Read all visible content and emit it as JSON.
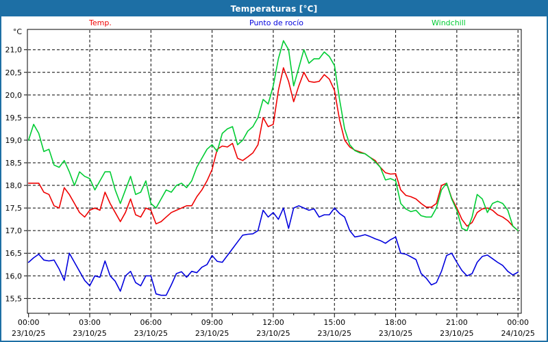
{
  "window": {
    "title": "Temperaturas [°C]"
  },
  "colors": {
    "titlebar_bg": "#1d6fa5",
    "titlebar_text": "#ffffff",
    "frame_border": "#1d6fa5",
    "plot_border": "#000000",
    "grid": "#000000",
    "temp_line": "#ee0000",
    "dew_line": "#0000dd",
    "windchill_line": "#00cc33"
  },
  "legend": [
    {
      "label": "Temp.",
      "color": "#ee0000"
    },
    {
      "label": "Punto de rocío",
      "color": "#0000dd"
    },
    {
      "label": "Windchill",
      "color": "#00cc33"
    }
  ],
  "chart_data": {
    "type": "line",
    "title": "Temperaturas [°C]",
    "y_unit": "°C",
    "ylim": [
      15.2,
      21.45
    ],
    "grid": "dashed-black, horizontal every 0.5 °C, vertical every 3 h",
    "legend_position": "top",
    "x_unit": "hours since 23/10/25 00:00",
    "x_hours": {
      "start": 0,
      "step": 0.25,
      "count": 97
    },
    "x_ticks": [
      {
        "t": 0,
        "time": "00:00",
        "date": "23/10/25"
      },
      {
        "t": 3,
        "time": "03:00",
        "date": "23/10/25"
      },
      {
        "t": 6,
        "time": "06:00",
        "date": "23/10/25"
      },
      {
        "t": 9,
        "time": "09:00",
        "date": "23/10/25"
      },
      {
        "t": 12,
        "time": "12:00",
        "date": "23/10/25"
      },
      {
        "t": 15,
        "time": "15:00",
        "date": "23/10/25"
      },
      {
        "t": 18,
        "time": "18:00",
        "date": "23/10/25"
      },
      {
        "t": 21,
        "time": "21:00",
        "date": "23/10/25"
      },
      {
        "t": 24,
        "time": "00:00",
        "date": "24/10/25"
      }
    ],
    "y_ticks": [
      {
        "v": 21.0,
        "label": "21,0"
      },
      {
        "v": 20.5,
        "label": "20,5"
      },
      {
        "v": 20.0,
        "label": "20,0"
      },
      {
        "v": 19.5,
        "label": "19,5"
      },
      {
        "v": 19.0,
        "label": "19,0"
      },
      {
        "v": 18.5,
        "label": "18,5"
      },
      {
        "v": 18.0,
        "label": "18,0"
      },
      {
        "v": 17.5,
        "label": "17,5"
      },
      {
        "v": 17.0,
        "label": "17,0"
      },
      {
        "v": 16.5,
        "label": "16,5"
      },
      {
        "v": 16.0,
        "label": "16,0"
      },
      {
        "v": 15.5,
        "label": "15,5"
      }
    ],
    "series": [
      {
        "name": "Temp.",
        "color": "#ee0000",
        "values": [
          18.05,
          18.05,
          18.05,
          17.85,
          17.8,
          17.55,
          17.5,
          17.95,
          17.8,
          17.6,
          17.4,
          17.3,
          17.45,
          17.5,
          17.45,
          17.85,
          17.6,
          17.4,
          17.2,
          17.4,
          17.7,
          17.35,
          17.3,
          17.5,
          17.45,
          17.15,
          17.2,
          17.3,
          17.4,
          17.45,
          17.5,
          17.55,
          17.55,
          17.75,
          17.9,
          18.1,
          18.35,
          18.8,
          18.87,
          18.85,
          18.93,
          18.6,
          18.55,
          18.63,
          18.72,
          18.9,
          19.5,
          19.3,
          19.35,
          20.1,
          20.6,
          20.3,
          19.85,
          20.2,
          20.5,
          20.3,
          20.28,
          20.3,
          20.45,
          20.35,
          20.1,
          19.45,
          19.0,
          18.85,
          18.78,
          18.74,
          18.7,
          18.62,
          18.55,
          18.4,
          18.28,
          18.25,
          18.26,
          17.9,
          17.78,
          17.75,
          17.7,
          17.6,
          17.52,
          17.52,
          17.6,
          18.0,
          18.05,
          17.72,
          17.5,
          17.25,
          17.1,
          17.18,
          17.4,
          17.48,
          17.5,
          17.45,
          17.35,
          17.3,
          17.22,
          17.1,
          17.0
        ]
      },
      {
        "name": "Punto de rocío",
        "color": "#0000dd",
        "values": [
          16.3,
          16.4,
          16.48,
          16.35,
          16.33,
          16.35,
          16.15,
          15.9,
          16.5,
          16.3,
          16.1,
          15.9,
          15.78,
          16.0,
          15.97,
          16.33,
          16.0,
          15.88,
          15.66,
          16.0,
          16.1,
          15.85,
          15.78,
          16.0,
          16.0,
          15.6,
          15.57,
          15.57,
          15.8,
          16.05,
          16.09,
          15.97,
          16.1,
          16.07,
          16.19,
          16.25,
          16.45,
          16.32,
          16.3,
          16.45,
          16.6,
          16.75,
          16.9,
          16.92,
          16.93,
          17.0,
          17.45,
          17.3,
          17.4,
          17.25,
          17.5,
          17.05,
          17.5,
          17.55,
          17.5,
          17.45,
          17.48,
          17.3,
          17.35,
          17.35,
          17.5,
          17.38,
          17.3,
          17.0,
          16.86,
          16.88,
          16.91,
          16.87,
          16.82,
          16.78,
          16.72,
          16.8,
          16.86,
          16.5,
          16.48,
          16.42,
          16.36,
          16.05,
          15.95,
          15.8,
          15.85,
          16.1,
          16.45,
          16.5,
          16.3,
          16.12,
          16.0,
          16.05,
          16.3,
          16.43,
          16.46,
          16.38,
          16.3,
          16.23,
          16.1,
          16.02,
          16.08
        ]
      },
      {
        "name": "Windchill",
        "color": "#00cc33",
        "values": [
          19.0,
          19.35,
          19.15,
          18.75,
          18.8,
          18.45,
          18.4,
          18.55,
          18.3,
          18.0,
          18.3,
          18.2,
          18.15,
          17.9,
          18.1,
          18.3,
          18.3,
          17.9,
          17.6,
          17.9,
          18.2,
          17.8,
          17.85,
          18.1,
          17.6,
          17.5,
          17.7,
          17.9,
          17.85,
          18.0,
          18.05,
          17.95,
          18.1,
          18.4,
          18.6,
          18.8,
          18.9,
          18.75,
          19.15,
          19.25,
          19.3,
          18.9,
          19.0,
          19.2,
          19.3,
          19.5,
          19.9,
          19.8,
          20.2,
          20.8,
          21.2,
          21.0,
          20.2,
          20.6,
          21.0,
          20.7,
          20.8,
          20.8,
          20.95,
          20.85,
          20.65,
          19.9,
          19.25,
          18.9,
          18.77,
          18.72,
          18.7,
          18.62,
          18.52,
          18.4,
          18.12,
          18.15,
          18.1,
          17.6,
          17.48,
          17.42,
          17.45,
          17.33,
          17.3,
          17.3,
          17.5,
          17.9,
          18.05,
          17.7,
          17.45,
          17.05,
          17.0,
          17.3,
          17.8,
          17.7,
          17.4,
          17.6,
          17.65,
          17.6,
          17.45,
          17.1,
          17.0
        ]
      }
    ]
  }
}
